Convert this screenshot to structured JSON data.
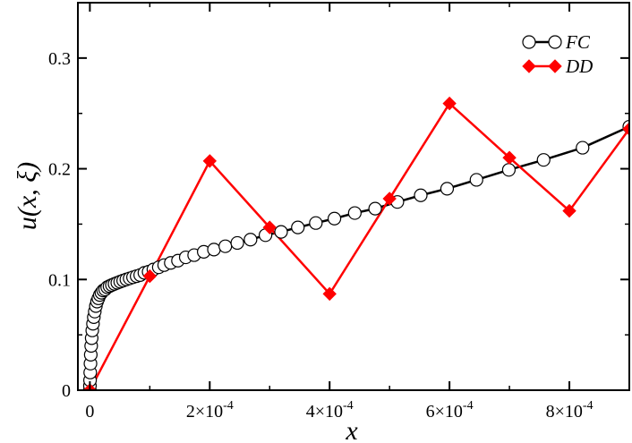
{
  "chart_data": {
    "type": "line",
    "xlabel": "x",
    "ylabel": "u(x, ξ)",
    "xlim": [
      -2e-05,
      0.0009
    ],
    "ylim": [
      0,
      0.35
    ],
    "x_ticks": [
      0,
      0.0002,
      0.0004,
      0.0006,
      0.0008
    ],
    "x_tick_labels": [
      "0",
      "2×10",
      "4×10",
      "6×10",
      "8×10"
    ],
    "x_tick_exponent": "-4",
    "y_ticks": [
      0,
      0.1,
      0.2,
      0.3
    ],
    "y_tick_labels": [
      "0",
      "0.1",
      "0.2",
      "0.3"
    ],
    "legend_position": "top-right",
    "grid": false,
    "series": [
      {
        "name": "FC",
        "color": "#000000",
        "marker": "open-circle",
        "x": [
          0,
          1e-07,
          3e-07,
          6e-07,
          1e-06,
          1.5e-06,
          2.2e-06,
          3e-06,
          4e-06,
          5.2e-06,
          6.6e-06,
          8.2e-06,
          1e-05,
          1.2e-05,
          1.42e-05,
          1.66e-05,
          1.93e-05,
          2.22e-05,
          2.55e-05,
          2.9e-05,
          3.28e-05,
          3.68e-05,
          4.12e-05,
          4.58e-05,
          5.06e-05,
          5.56e-05,
          6.09e-05,
          6.64e-05,
          7.2e-05,
          7.8e-05,
          8.4e-05,
          9.1e-05,
          9.8e-05,
          0.000106,
          0.000115,
          0.000124,
          0.000135,
          0.000147,
          0.00016,
          0.000174,
          0.00019,
          0.000207,
          0.000226,
          0.000246,
          0.000268,
          0.000293,
          0.000319,
          0.000347,
          0.000377,
          0.000408,
          0.000442,
          0.000476,
          0.000513,
          0.000552,
          0.000596,
          0.000645,
          0.000699,
          0.000757,
          0.000822,
          0.0009
        ],
        "y": [
          0.0,
          0.004,
          0.009,
          0.016,
          0.024,
          0.032,
          0.04,
          0.047,
          0.054,
          0.06,
          0.066,
          0.071,
          0.076,
          0.08,
          0.083,
          0.086,
          0.088,
          0.09,
          0.091,
          0.093,
          0.094,
          0.095,
          0.096,
          0.097,
          0.098,
          0.099,
          0.1,
          0.101,
          0.102,
          0.103,
          0.104,
          0.106,
          0.107,
          0.109,
          0.111,
          0.113,
          0.115,
          0.117,
          0.12,
          0.122,
          0.125,
          0.127,
          0.13,
          0.133,
          0.136,
          0.14,
          0.143,
          0.147,
          0.151,
          0.155,
          0.16,
          0.164,
          0.17,
          0.176,
          0.182,
          0.19,
          0.199,
          0.208,
          0.219,
          0.238
        ]
      },
      {
        "name": "DD",
        "color": "#ff0000",
        "marker": "filled-diamond",
        "x": [
          0,
          0.0001,
          0.0002,
          0.0003,
          0.0004,
          0.0005,
          0.0006,
          0.0007,
          0.0008,
          0.0009
        ],
        "y": [
          0.0,
          0.103,
          0.207,
          0.147,
          0.087,
          0.173,
          0.259,
          0.21,
          0.162,
          0.236
        ]
      }
    ]
  }
}
